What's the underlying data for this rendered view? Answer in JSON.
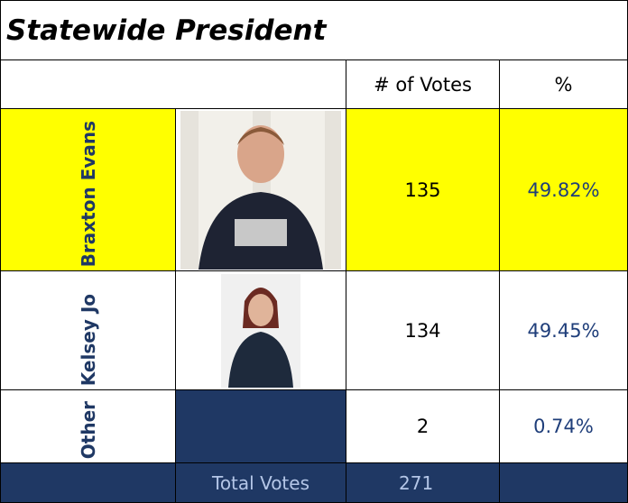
{
  "title": "Statewide President",
  "header": {
    "votes": "# of Votes",
    "percent": "%"
  },
  "rows": [
    {
      "name": "Braxton Evans",
      "votes": 135,
      "percent": "49.82%"
    },
    {
      "name": "Kelsey Jo",
      "votes": 134,
      "percent": "49.45%"
    },
    {
      "name": "Other",
      "votes": 2,
      "percent": "0.74%"
    }
  ],
  "total": {
    "label": "Total Votes",
    "votes": 271
  }
}
